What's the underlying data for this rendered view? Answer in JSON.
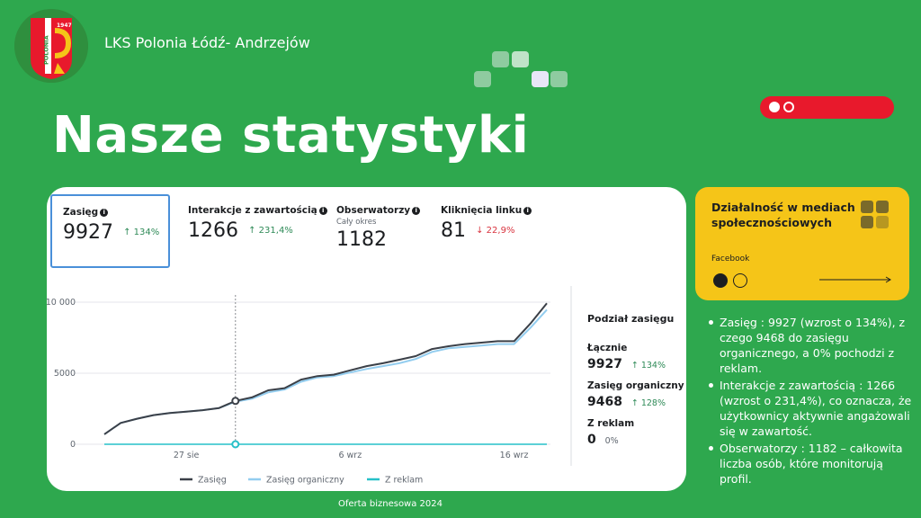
{
  "header": {
    "org_name": "LKS Polonia Łódź- Andrzejów",
    "page_title": "Nasze statystyki",
    "logo_text": "POLONIA",
    "logo_year": "1947"
  },
  "colors": {
    "background": "#2ea84e",
    "accent_red": "#e8192c",
    "accent_yellow": "#f5c518",
    "series_reach": "#3b4048",
    "series_organic": "#93cdef",
    "series_ads": "#27c0c8"
  },
  "metrics": [
    {
      "label": "Zasięg",
      "sub": "",
      "value": "9927",
      "change": "134%",
      "direction": "up",
      "active": true
    },
    {
      "label": "Interakcje z zawartością",
      "sub": "",
      "value": "1266",
      "change": "231,4%",
      "direction": "up",
      "active": false
    },
    {
      "label": "Obserwatorzy",
      "sub": "Cały okres",
      "value": "1182",
      "change": "",
      "direction": "",
      "active": false
    },
    {
      "label": "Kliknięcia linku",
      "sub": "",
      "value": "81",
      "change": "22,9%",
      "direction": "down",
      "active": false
    }
  ],
  "chart_data": {
    "type": "line",
    "x": [
      1,
      2,
      3,
      4,
      5,
      6,
      7,
      8,
      9,
      10,
      11,
      12,
      13,
      14,
      15,
      16,
      17,
      18,
      19,
      20,
      21,
      22,
      23,
      24,
      25,
      26,
      27,
      28
    ],
    "x_tick_labels": [
      {
        "x": 6,
        "label": "27 sie"
      },
      {
        "x": 16,
        "label": "6 wrz"
      },
      {
        "x": 26,
        "label": "16 wrz"
      }
    ],
    "y_tick_labels": [
      "0",
      "5000",
      "10 000"
    ],
    "y_ticks": [
      0,
      5000,
      10000
    ],
    "ylim": [
      0,
      10000
    ],
    "highlight_x": 9,
    "series": [
      {
        "name": "Zasięg",
        "values": [
          700,
          1500,
          1800,
          2050,
          2200,
          2300,
          2400,
          2550,
          3050,
          3300,
          3800,
          3950,
          4550,
          4800,
          4900,
          5200,
          5500,
          5700,
          5950,
          6200,
          6700,
          6900,
          7050,
          7150,
          7250,
          7250,
          8500,
          9927
        ]
      },
      {
        "name": "Zasięg organiczny",
        "values": [
          700,
          1500,
          1800,
          2050,
          2200,
          2300,
          2400,
          2550,
          3000,
          3200,
          3650,
          3850,
          4400,
          4700,
          4800,
          5050,
          5300,
          5500,
          5700,
          6000,
          6500,
          6750,
          6850,
          6950,
          7050,
          7050,
          8200,
          9468
        ]
      },
      {
        "name": "Z reklam",
        "values": [
          0,
          0,
          0,
          0,
          0,
          0,
          0,
          0,
          0,
          0,
          0,
          0,
          0,
          0,
          0,
          0,
          0,
          0,
          0,
          0,
          0,
          0,
          0,
          0,
          0,
          0,
          0,
          0
        ]
      }
    ],
    "legend_position": "bottom",
    "grid": true
  },
  "breakdown": {
    "title": "Podział zasięgu",
    "items": [
      {
        "label": "Łącznie",
        "value": "9927",
        "change": "134%",
        "direction": "up"
      },
      {
        "label": "Zasięg organiczny",
        "value": "9468",
        "change": "128%",
        "direction": "up"
      },
      {
        "label": "Z reklam",
        "value": "0",
        "change": "0%",
        "direction": ""
      }
    ]
  },
  "side_card": {
    "title": "Działalność w mediach społecznościowych",
    "subtitle": "Facebook"
  },
  "bullets": [
    "Zasięg : 9927 (wzrost o 134%), z czego 9468 do zasięgu organicznego, a 0% pochodzi z reklam.",
    "Interakcje z zawartością : 1266 (wzrost o 231,4%), co oznacza, że użytkownicy aktywnie angażowali się w zawartość.",
    "Obserwatorzy : 1182 – całkowita liczba osób, które monitorują profil."
  ],
  "footer": "Oferta biznesowa 2024"
}
